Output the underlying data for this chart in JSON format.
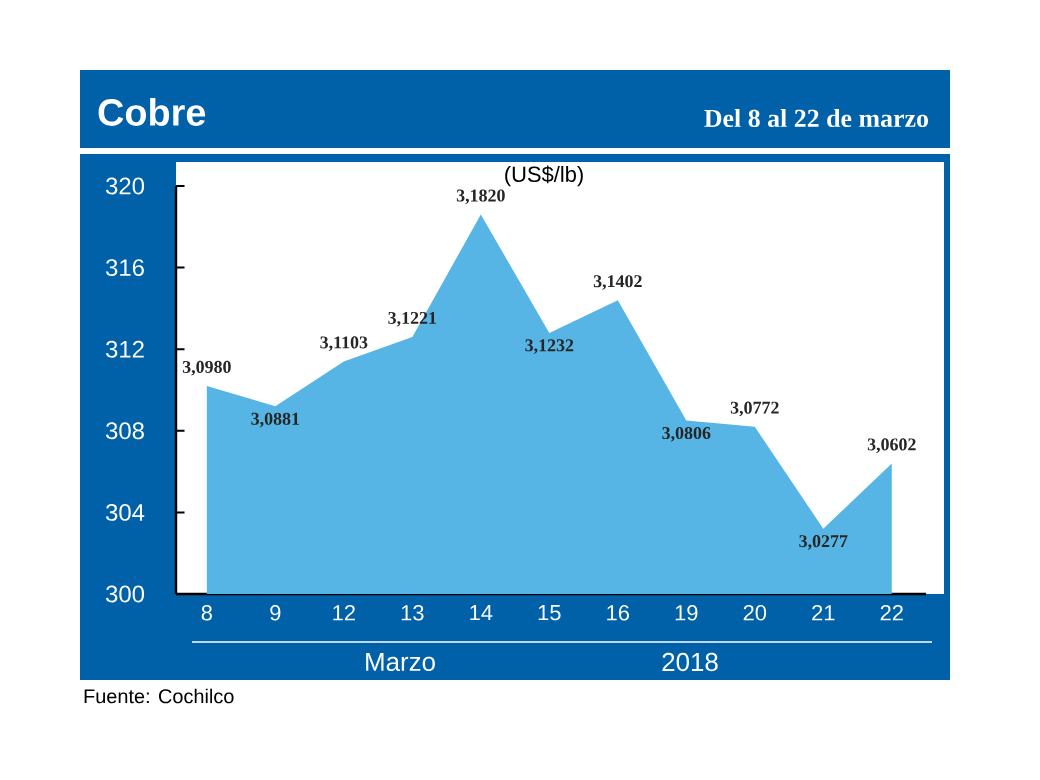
{
  "chart_data": {
    "type": "area",
    "title": "Cobre",
    "subtitle": "Del 8 al 22 de marzo",
    "ylabel": "(US$/lb)",
    "categories": [
      "8",
      "9",
      "12",
      "13",
      "14",
      "15",
      "16",
      "19",
      "20",
      "21",
      "22"
    ],
    "series": [
      {
        "color": "#56b5e4",
        "values": [
          310.2,
          309.2,
          311.4,
          312.6,
          318.6,
          312.8,
          314.4,
          308.5,
          308.2,
          303.2,
          306.4
        ],
        "value_labels": [
          "3,0980",
          "3,0881",
          "3,1103",
          "3,1221",
          "3,1820",
          "3,1232",
          "3,1402",
          "3,0806",
          "3,0772",
          "3,0277",
          "3,0602"
        ]
      }
    ],
    "ylim": [
      300,
      320
    ],
    "yticks": [
      300,
      304,
      308,
      312,
      316,
      320
    ],
    "grid": false,
    "annotations": [
      "Marzo",
      "2018",
      "Fuente: Cochilco"
    ]
  }
}
